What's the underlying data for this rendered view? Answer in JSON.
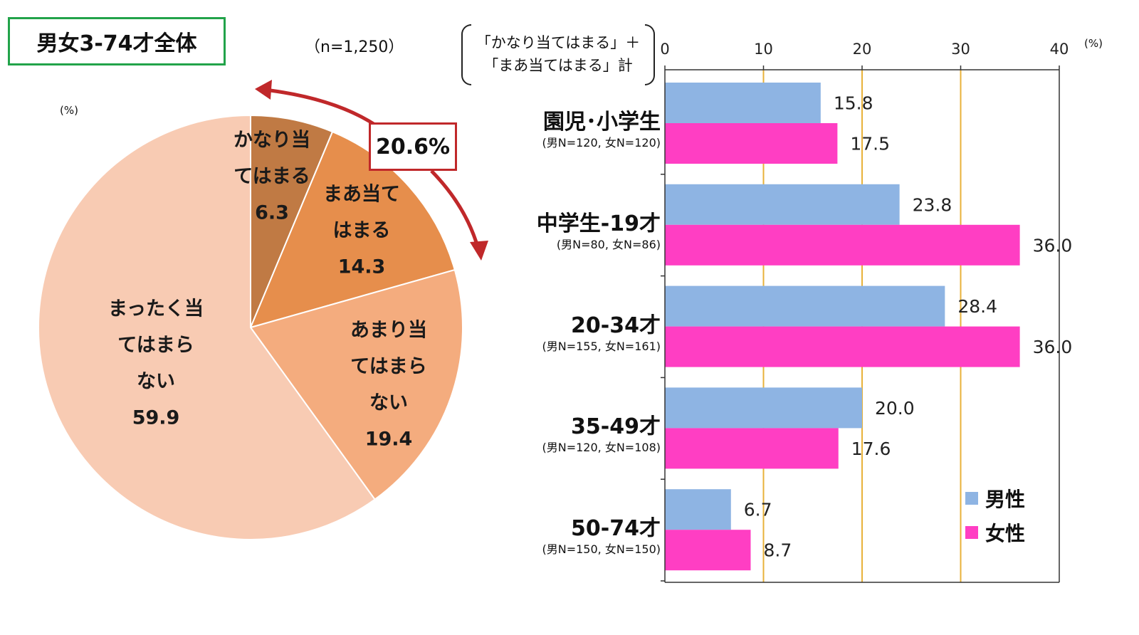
{
  "title": "男女3-74才全体",
  "sample_note": "（n=1,250）",
  "pie_unit": "(%)",
  "bar_unit": "(%)",
  "bar_header": {
    "line1": "「かなり当てはまる」＋",
    "line2": "「まあ当てはまる」計"
  },
  "combined_total": "20.6%",
  "colors": {
    "title_border": "#22a34a",
    "arrow": "#c0282a",
    "male": "#8eb4e3",
    "female": "#ff3ec3",
    "gridline": "#e8b23a"
  },
  "chart_data": [
    {
      "type": "pie",
      "unit": "%",
      "slices": [
        {
          "label_lines": [
            "かなり当",
            "てはまる"
          ],
          "value": 6.3,
          "value_label": "6.3",
          "color": "#c07a44"
        },
        {
          "label_lines": [
            "まあ当て",
            "はまる"
          ],
          "value": 14.3,
          "value_label": "14.3",
          "color": "#e68e4c"
        },
        {
          "label_lines": [
            "あまり当",
            "てはまら",
            "ない"
          ],
          "value": 19.4,
          "value_label": "19.4",
          "color": "#f4ac7e"
        },
        {
          "label_lines": [
            "まったく当",
            "てはまら",
            "ない"
          ],
          "value": 59.9,
          "value_label": "59.9",
          "color": "#f8cbb3"
        }
      ]
    },
    {
      "type": "bar",
      "orientation": "horizontal",
      "xlim": [
        0,
        40
      ],
      "ticks": [
        0,
        10,
        20,
        30,
        40
      ],
      "tick_labels": [
        "0",
        "10",
        "20",
        "30",
        "40"
      ],
      "gridlines": [
        10,
        20,
        30
      ],
      "legend_position": "bottom-right",
      "categories": [
        {
          "label": "園児･小学生",
          "sub": "(男N=120, 女N=120)"
        },
        {
          "label": "中学生-19才",
          "sub": "(男N=80, 女N=86)"
        },
        {
          "label": "20-34才",
          "sub": "(男N=155, 女N=161)"
        },
        {
          "label": "35-49才",
          "sub": "(男N=120, 女N=108)"
        },
        {
          "label": "50-74才",
          "sub": "(男N=150, 女N=150)"
        }
      ],
      "series": [
        {
          "name": "男性",
          "values": [
            15.8,
            23.8,
            28.4,
            20.0,
            6.7
          ],
          "labels": [
            "15.8",
            "23.8",
            "28.4",
            "20.0",
            "6.7"
          ]
        },
        {
          "name": "女性",
          "values": [
            17.5,
            36.0,
            36.0,
            17.6,
            8.7
          ],
          "labels": [
            "17.5",
            "36.0",
            "36.0",
            "17.6",
            "8.7"
          ]
        }
      ]
    }
  ]
}
